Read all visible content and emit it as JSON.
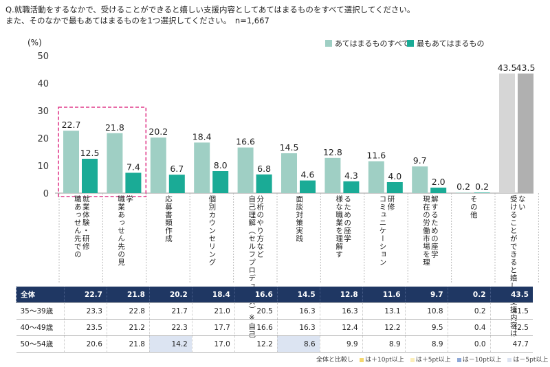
{
  "question": {
    "line1": "Q.就職活動をするなかで、受けることができると嬉しい支援内容としてあてはまるものをすべて選択してください。",
    "line2": "また、そのなかで最もあてはまるものを1つ選択してください。　n=1,667"
  },
  "chart_data": {
    "type": "bar",
    "unit_label": "(%)",
    "ylim": [
      0,
      50
    ],
    "yticks": [
      0,
      10,
      20,
      30,
      40,
      50
    ],
    "categories": [
      "就職\n業あ\n体っ\n験せ\n・ん\n研先\n修で\n　の",
      "学職\n　業\n　あ\n　っ\n　せ\n　ん\n　先\n　の\n　見",
      "応\n募\n書\n類\n作\n成",
      "個\n別\nカ\nウ\nン\nセ\nリ\nン\nグ",
      "分自\n析己\nの理\nや解\nり（\n方セ\nなル\nどフ\n　プ\n　ロ\n　デ\n　ュ\n　ー\n　ス\n　）\n　※\n　自\n　己",
      "面\n談\n対\n策\n実\n践",
      "る様\nたな\nめ職\nの業\n座を\n学理\n　解\n　す",
      "研コ\n修ミ\n　ュ\n　ニ\n　ケ\n　ー\n　シ\n　ョ\n　ン",
      "解現\nす在\nるの\nた労\nめ働\nの市\n座場\n学を\n　理",
      "そ\nの\n他",
      "な受\nいけ\n　る\n　こ\n　と\n　が\n　で\n　き\n　る\n　と\n　嬉\n　し\n　い\n　支\n　援\n　内\n　容\n　は"
    ],
    "series": [
      {
        "name": "あてはまるものすべて",
        "color": "#9fcfc4",
        "values": [
          22.7,
          21.8,
          20.2,
          18.4,
          16.6,
          14.5,
          12.8,
          11.6,
          9.7,
          0.2,
          43.5
        ]
      },
      {
        "name": "最もあてはまるもの",
        "color": "#1aab96",
        "values": [
          12.5,
          7.4,
          6.7,
          8.0,
          6.8,
          4.6,
          4.3,
          4.0,
          2.0,
          0.2,
          43.5
        ]
      }
    ],
    "last_category_colors": [
      "#d6d6d6",
      "#b0b0b0"
    ],
    "highlight_categories": [
      0,
      1
    ],
    "table": {
      "rows": [
        {
          "label": "全体",
          "values": [
            "22.7",
            "21.8",
            "20.2",
            "18.4",
            "16.6",
            "14.5",
            "12.8",
            "11.6",
            "9.7",
            "0.2",
            "43.5"
          ]
        },
        {
          "label": "35〜39歳",
          "values": [
            "23.3",
            "22.8",
            "21.7",
            "21.0",
            "20.5",
            "16.3",
            "16.3",
            "13.1",
            "10.8",
            "0.2",
            "41.5"
          ]
        },
        {
          "label": "40〜49歳",
          "values": [
            "23.5",
            "21.2",
            "22.3",
            "17.7",
            "16.6",
            "16.3",
            "12.4",
            "12.2",
            "9.5",
            "0.4",
            "42.5"
          ]
        },
        {
          "label": "50〜54歳",
          "values": [
            "20.6",
            "21.8",
            "14.2",
            "17.0",
            "12.2",
            "8.6",
            "9.9",
            "8.9",
            "8.9",
            "0.0",
            "47.7"
          ]
        }
      ],
      "low_cells": [
        [
          3,
          2
        ],
        [
          3,
          5
        ]
      ]
    }
  },
  "note": {
    "prefix": "全体と比較し",
    "items": [
      {
        "label": "は＋10pt以上",
        "color": "#f5d76e"
      },
      {
        "label": "は＋5pt以上",
        "color": "#fbeeb8"
      },
      {
        "label": "は－10pt以上",
        "color": "#8ea9d8"
      },
      {
        "label": "は－5pt以上",
        "color": "#dce4f2"
      }
    ]
  }
}
